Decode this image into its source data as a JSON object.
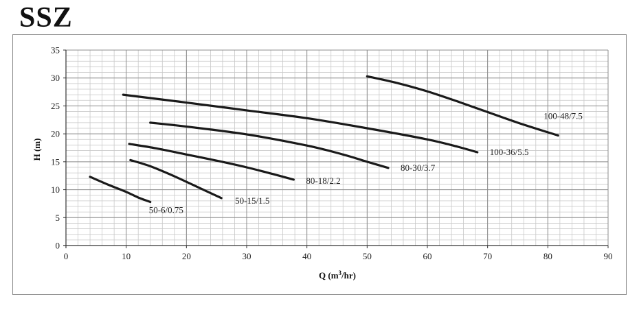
{
  "page": {
    "heading": "SSZ"
  },
  "chart_data": {
    "type": "line",
    "title": "",
    "xlabel": "Q (m³/hr)",
    "xlabel_base": "Q (m",
    "xlabel_sup": "3",
    "xlabel_tail": "/hr)",
    "ylabel": "H (m)",
    "xlim": [
      0,
      90
    ],
    "ylim": [
      0,
      35
    ],
    "x_ticks": [
      0,
      10,
      20,
      30,
      40,
      50,
      60,
      70,
      80,
      90
    ],
    "y_ticks": [
      0,
      5,
      10,
      15,
      20,
      25,
      30,
      35
    ],
    "grid": true,
    "line_color": "#1a1a1a",
    "series": [
      {
        "name": "50-6/0.75",
        "points": [
          [
            4,
            12.3
          ],
          [
            7,
            10.9
          ],
          [
            10,
            9.6
          ],
          [
            12,
            8.6
          ],
          [
            14,
            7.8
          ]
        ]
      },
      {
        "name": "50-15/1.5",
        "points": [
          [
            10.7,
            15.3
          ],
          [
            14,
            14.2
          ],
          [
            18,
            12.4
          ],
          [
            22,
            10.4
          ],
          [
            25.8,
            8.5
          ]
        ]
      },
      {
        "name": "80-18/2.2",
        "points": [
          [
            10.5,
            18.2
          ],
          [
            15,
            17.4
          ],
          [
            20,
            16.3
          ],
          [
            25,
            15.2
          ],
          [
            30,
            14.0
          ],
          [
            34,
            12.9
          ],
          [
            37.8,
            11.8
          ]
        ]
      },
      {
        "name": "80-30/3.7",
        "points": [
          [
            14,
            22.0
          ],
          [
            20,
            21.3
          ],
          [
            30,
            19.9
          ],
          [
            40,
            17.9
          ],
          [
            46,
            16.3
          ],
          [
            50,
            15.0
          ],
          [
            53.5,
            13.9
          ]
        ]
      },
      {
        "name": "100-36/5.5",
        "points": [
          [
            9.5,
            27.0
          ],
          [
            20,
            25.6
          ],
          [
            30,
            24.2
          ],
          [
            40,
            22.8
          ],
          [
            50,
            21.0
          ],
          [
            60,
            19.0
          ],
          [
            65,
            17.7
          ],
          [
            68.3,
            16.7
          ]
        ]
      },
      {
        "name": "100-48/7.5",
        "points": [
          [
            50,
            30.3
          ],
          [
            55,
            29.1
          ],
          [
            60,
            27.6
          ],
          [
            65,
            25.8
          ],
          [
            70,
            23.9
          ],
          [
            75,
            22.0
          ],
          [
            81.7,
            19.7
          ]
        ]
      }
    ]
  }
}
